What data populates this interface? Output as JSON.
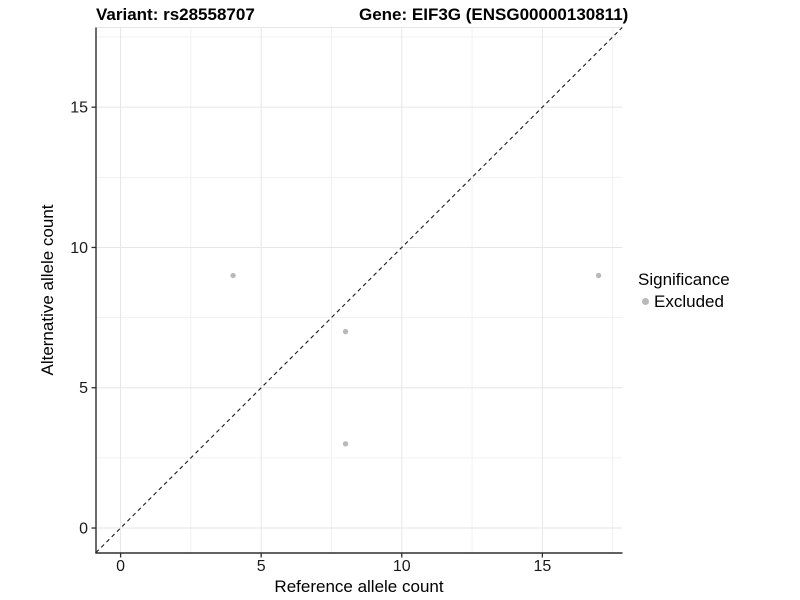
{
  "chart_data": {
    "type": "scatter",
    "titles": {
      "variant": "Variant: rs28558707",
      "gene": "Gene: EIF3G (ENSG00000130811)"
    },
    "xlabel": "Reference allele count",
    "ylabel": "Alternative allele count",
    "xlim": [
      -0.875,
      17.85
    ],
    "ylim": [
      -0.89,
      17.84
    ],
    "x_ticks": [
      0,
      5,
      10,
      15
    ],
    "y_ticks": [
      0,
      5,
      10,
      15
    ],
    "x_minor_ticks": [
      2.5,
      7.5,
      12.5,
      17.5
    ],
    "y_minor_ticks": [
      2.5,
      7.5,
      12.5,
      17.5
    ],
    "grid": "major+minor",
    "series": [
      {
        "name": "Excluded",
        "color": "#b9b9b9",
        "points": [
          {
            "x": 4,
            "y": 9
          },
          {
            "x": 8,
            "y": 7
          },
          {
            "x": 8,
            "y": 3
          },
          {
            "x": 17,
            "y": 9
          }
        ]
      }
    ],
    "identity_line": {
      "equation": "y = x",
      "style": "dashed",
      "color": "#1a1a1a"
    },
    "legend": {
      "title": "Significance",
      "position": "right",
      "items": [
        {
          "label": "Excluded",
          "color": "#b9b9b9"
        }
      ]
    },
    "colors": {
      "background": "#ffffff",
      "grid_major": "#e6e6e6",
      "grid_minor": "#f1f1f1",
      "axis_line": "#2e2e2e",
      "tick_text": "#1a1a1a"
    }
  }
}
